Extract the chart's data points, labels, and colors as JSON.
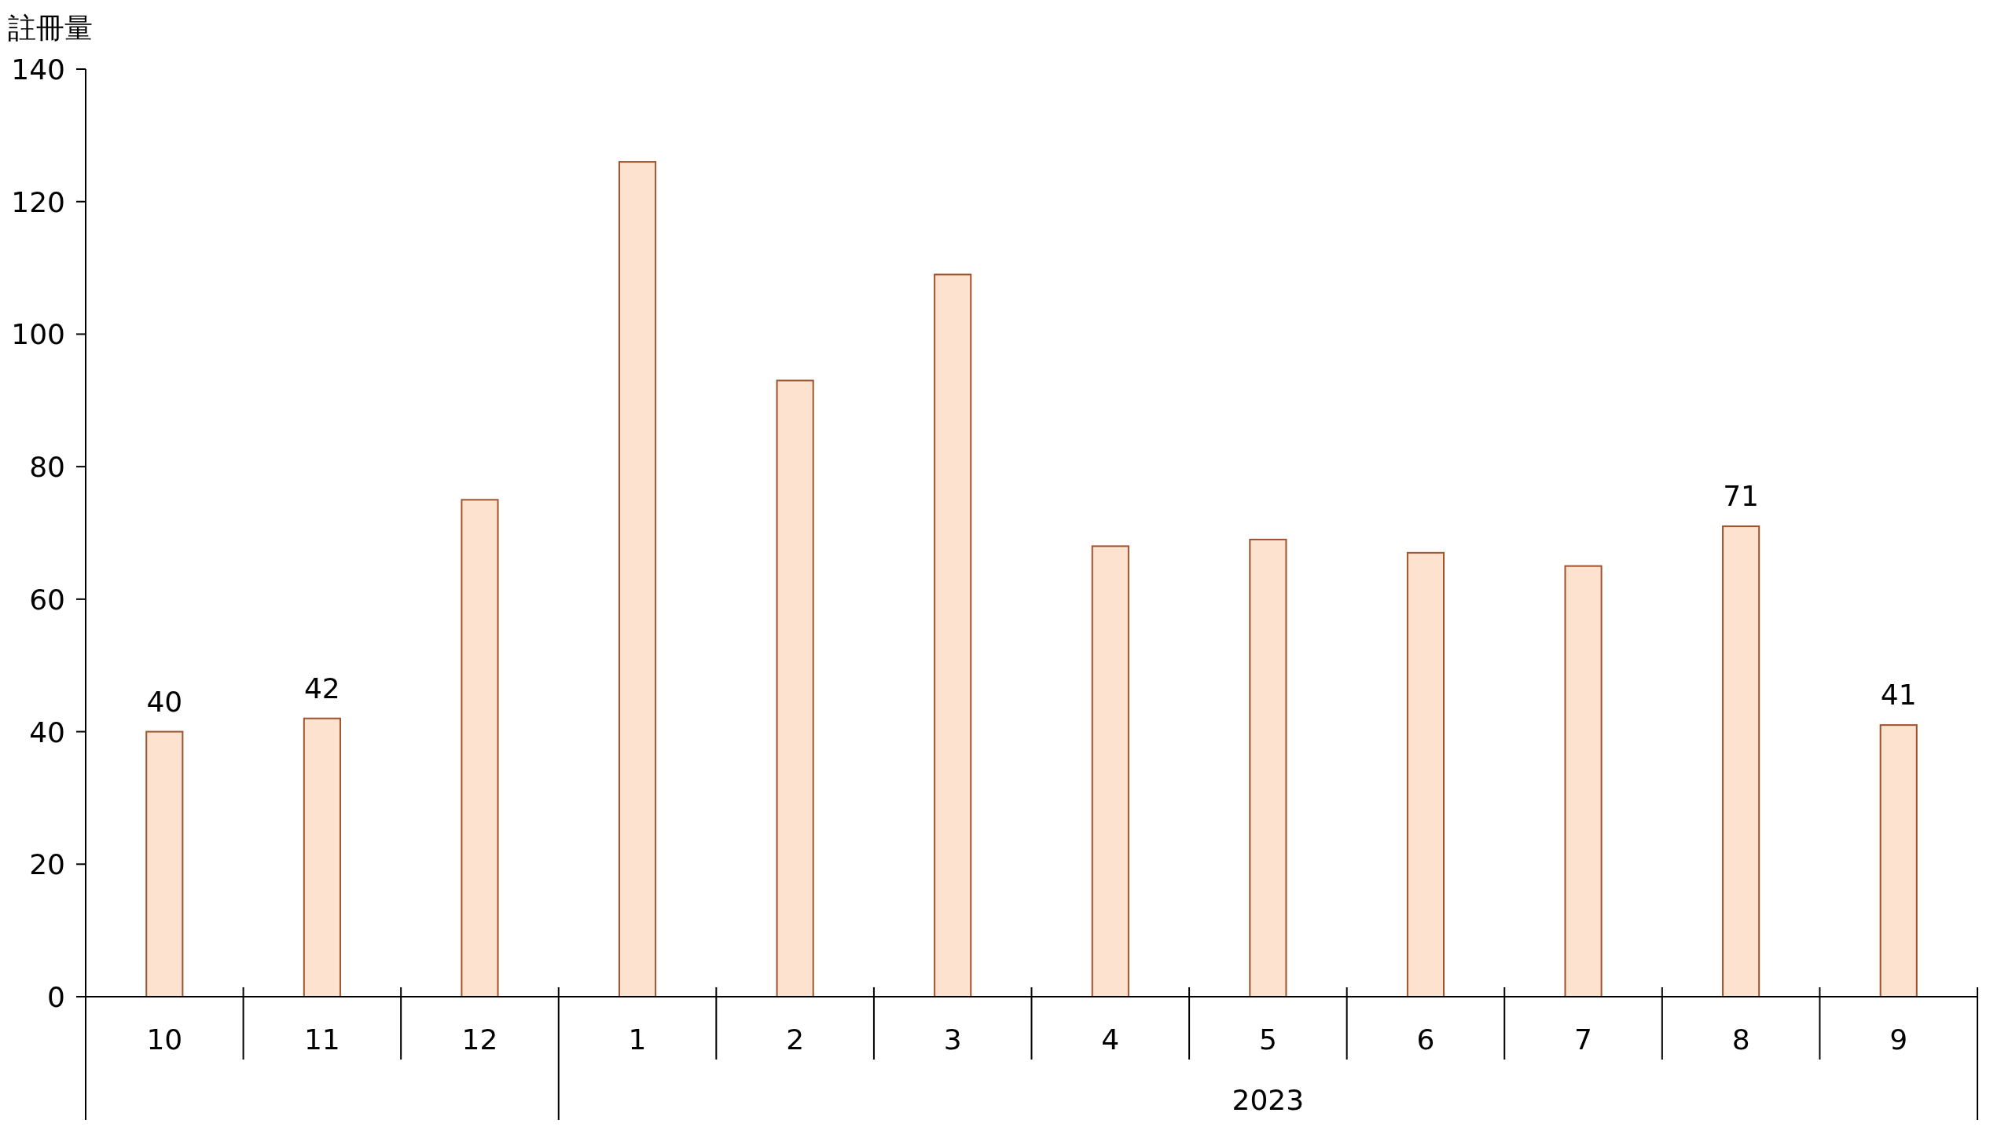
{
  "chart_data": {
    "type": "bar",
    "ylabel": "註冊量",
    "categories": [
      "10",
      "11",
      "12",
      "1",
      "2",
      "3",
      "4",
      "5",
      "6",
      "7",
      "8",
      "9"
    ],
    "values": [
      40,
      42,
      75,
      126,
      93,
      109,
      68,
      69,
      67,
      65,
      71,
      41
    ],
    "value_labels": [
      "40",
      "42",
      null,
      null,
      null,
      null,
      null,
      null,
      null,
      null,
      "71",
      "41"
    ],
    "color": "#fde3cf",
    "ylim": [
      0,
      140
    ],
    "yticks": [
      0,
      20,
      40,
      60,
      80,
      100,
      120,
      140
    ],
    "annotations": [
      "2023"
    ]
  }
}
